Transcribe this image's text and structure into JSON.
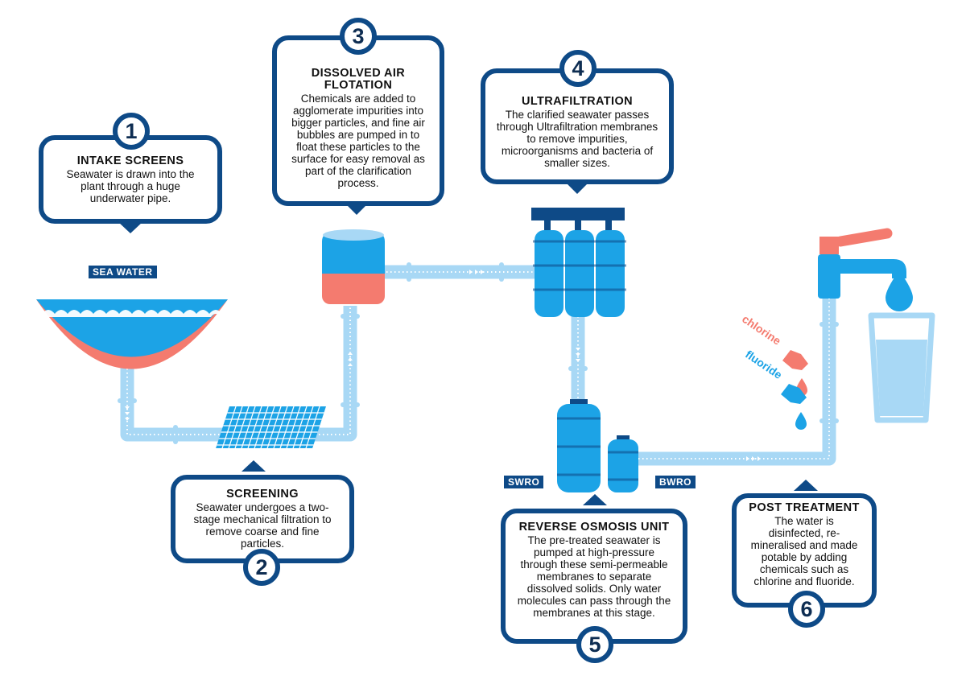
{
  "steps": [
    {
      "number": "1",
      "title": "INTAKE SCREENS",
      "description": "Seawater is drawn into the plant through a huge underwater pipe."
    },
    {
      "number": "2",
      "title": "SCREENING",
      "description": "Seawater undergoes a two-stage mechanical filtration to remove coarse and fine particles."
    },
    {
      "number": "3",
      "title": "DISSOLVED AIR FLOTATION",
      "description": "Chemicals are added to agglomerate impurities into bigger particles, and fine air bubbles are pumped in to float these particles to the surface for easy removal as part of the clarification process."
    },
    {
      "number": "4",
      "title": "ULTRAFILTRATION",
      "description": "The clarified seawater passes through Ultrafiltration membranes to remove impurities, microorganisms and bacteria of smaller sizes."
    },
    {
      "number": "5",
      "title": "REVERSE OSMOSIS UNIT",
      "description": "The pre-treated seawater is pumped at high-pressure through these semi-permeable membranes to separate dissolved solids. Only water molecules can pass through the membranes at this stage."
    },
    {
      "number": "6",
      "title": "POST TREATMENT",
      "description": "The water is disinfected, re-mineralised and made potable by adding chemicals such as chlorine and fluoride."
    }
  ],
  "labels": {
    "sea_water": "SEA WATER",
    "swro": "SWRO",
    "bwro": "BWRO",
    "chlorine": "chlorine",
    "fluoride": "fluoride"
  },
  "colors": {
    "navy": "#0e4a87",
    "pipe": "#a8d8f5",
    "water": "#1ca3e6",
    "coral": "#f47b6f"
  }
}
